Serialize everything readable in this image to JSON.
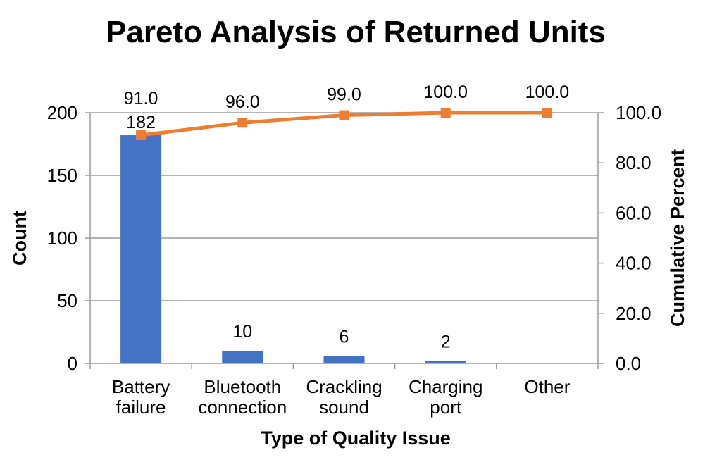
{
  "chart_data": {
    "type": "pareto (bar + line combo)",
    "title": "Pareto Analysis of Returned Units",
    "categories": [
      "Battery failure",
      "Bluetooth connection",
      "Crackling sound",
      "Charging port",
      "Other"
    ],
    "series": [
      {
        "name": "Count",
        "type": "bar",
        "values": [
          182,
          10,
          6,
          2,
          0
        ],
        "labels": [
          "182",
          "10",
          "6",
          "2",
          ""
        ],
        "color": "#4472C4"
      },
      {
        "name": "Cumulative Percent",
        "type": "line",
        "marker": "square",
        "values": [
          91.0,
          96.0,
          99.0,
          100.0,
          100.0
        ],
        "labels": [
          "91.0",
          "96.0",
          "99.0",
          "100.0",
          "100.0"
        ],
        "color": "#ED7D31"
      }
    ],
    "left_axis": {
      "label": "Count",
      "ticks": [
        "200",
        "150",
        "100",
        "50",
        "0"
      ],
      "min": 0,
      "max": 200
    },
    "right_axis": {
      "label": "Cumulative Percent",
      "ticks": [
        "100.0",
        "80.0",
        "60.0",
        "40.0",
        "20.0",
        "0.0"
      ],
      "min": 0,
      "max": 100
    },
    "x_axis": {
      "label": "Type of Quality Issue"
    },
    "grid": "horizontal major gridlines",
    "legend": "none",
    "colors": {
      "bar": "#4472C4",
      "line": "#ED7D31",
      "grid": "#9b9b9b",
      "axis": "#9b9b9b",
      "text": "#000000",
      "background": "#FFFFFF"
    }
  }
}
